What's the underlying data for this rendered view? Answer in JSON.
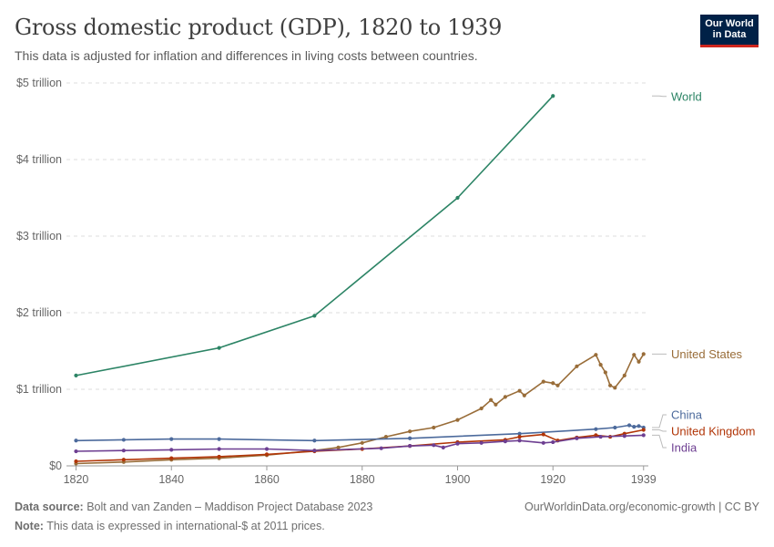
{
  "header": {
    "title": "Gross domestic product (GDP), 1820 to 1939",
    "subtitle": "This data is adjusted for inflation and differences in living costs between countries.",
    "logo_line1": "Our World",
    "logo_line2": "in Data"
  },
  "footer": {
    "source_label": "Data source:",
    "source_text": "Bolt and van Zanden – Maddison Project Database 2023",
    "url": "OurWorldinData.org/economic-growth | CC BY",
    "note_label": "Note:",
    "note_text": "This data is expressed in international-$ at 2011 prices."
  },
  "chart_data": {
    "type": "line",
    "title": "Gross domestic product (GDP), 1820 to 1939",
    "xlim": [
      1818,
      1940
    ],
    "ylim": [
      0,
      5
    ],
    "x_ticks": [
      1820,
      1840,
      1860,
      1880,
      1900,
      1920,
      1939
    ],
    "x_tick_labels": [
      "1820",
      "1840",
      "1860",
      "1880",
      "1900",
      "1920",
      "1939"
    ],
    "y_ticks": [
      0,
      1,
      2,
      3,
      4,
      5
    ],
    "y_tick_labels": [
      "$0",
      "$1 trillion",
      "$2 trillion",
      "$3 trillion",
      "$4 trillion",
      "$5 trillion"
    ],
    "grid": "horizontal dashed",
    "legend": "right end labels",
    "series": [
      {
        "name": "World",
        "color": "#2c8465",
        "x": [
          1820,
          1850,
          1870,
          1900,
          1920
        ],
        "y": [
          1.18,
          1.54,
          1.96,
          3.5,
          4.83
        ]
      },
      {
        "name": "United States",
        "color": "#996d39",
        "x": [
          1820,
          1830,
          1840,
          1850,
          1860,
          1870,
          1875,
          1880,
          1885,
          1890,
          1895,
          1900,
          1905,
          1907,
          1908,
          1910,
          1913,
          1914,
          1918,
          1920,
          1921,
          1925,
          1929,
          1930,
          1931,
          1932,
          1933,
          1935,
          1937,
          1938,
          1939
        ],
        "y": [
          0.03,
          0.05,
          0.08,
          0.1,
          0.14,
          0.2,
          0.24,
          0.3,
          0.38,
          0.45,
          0.5,
          0.6,
          0.75,
          0.86,
          0.8,
          0.9,
          0.98,
          0.92,
          1.1,
          1.08,
          1.05,
          1.3,
          1.45,
          1.32,
          1.22,
          1.05,
          1.02,
          1.18,
          1.45,
          1.36,
          1.46
        ]
      },
      {
        "name": "China",
        "color": "#4c6a9c",
        "x": [
          1820,
          1830,
          1840,
          1850,
          1870,
          1890,
          1913,
          1929,
          1933,
          1936,
          1937,
          1938,
          1939
        ],
        "y": [
          0.33,
          0.34,
          0.35,
          0.35,
          0.33,
          0.36,
          0.42,
          0.48,
          0.5,
          0.53,
          0.51,
          0.52,
          0.5
        ]
      },
      {
        "name": "United Kingdom",
        "color": "#b13507",
        "x": [
          1820,
          1830,
          1840,
          1850,
          1860,
          1870,
          1880,
          1890,
          1900,
          1910,
          1913,
          1918,
          1921,
          1925,
          1929,
          1932,
          1935,
          1939
        ],
        "y": [
          0.06,
          0.08,
          0.1,
          0.12,
          0.15,
          0.19,
          0.22,
          0.26,
          0.31,
          0.34,
          0.38,
          0.41,
          0.33,
          0.37,
          0.4,
          0.38,
          0.42,
          0.47
        ]
      },
      {
        "name": "India",
        "color": "#6d3e91",
        "x": [
          1820,
          1830,
          1840,
          1850,
          1860,
          1870,
          1884,
          1890,
          1895,
          1897,
          1900,
          1905,
          1910,
          1913,
          1918,
          1920,
          1925,
          1930,
          1935,
          1939
        ],
        "y": [
          0.19,
          0.2,
          0.21,
          0.22,
          0.22,
          0.2,
          0.23,
          0.26,
          0.27,
          0.24,
          0.29,
          0.3,
          0.32,
          0.33,
          0.3,
          0.31,
          0.36,
          0.38,
          0.39,
          0.4
        ]
      }
    ]
  }
}
